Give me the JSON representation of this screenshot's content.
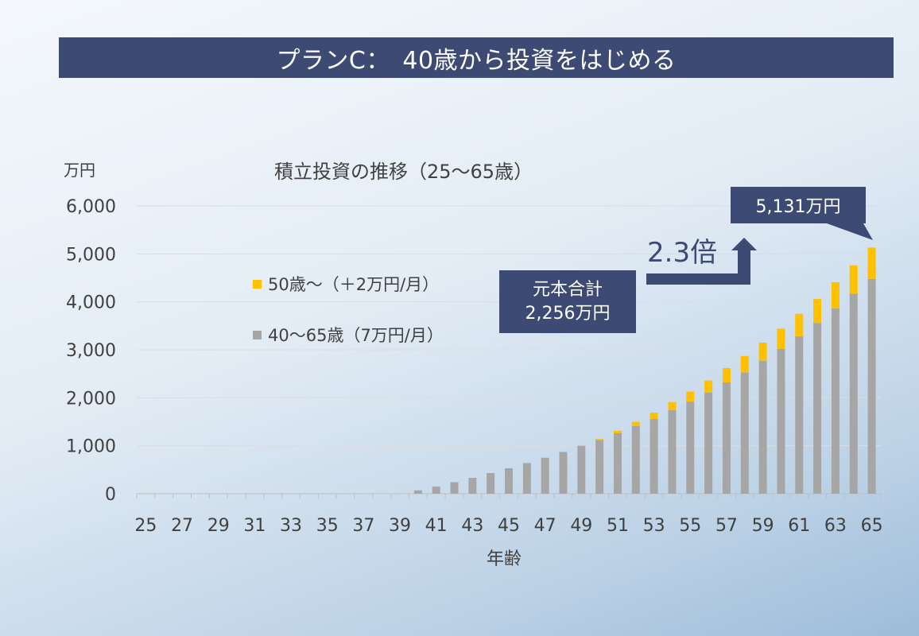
{
  "page": {
    "title": "プランC：　40歳から投資をはじめる"
  },
  "annotations": {
    "principal_line1": "元本合計",
    "principal_line2": "2,256万円",
    "multiplier": "2.3倍",
    "final_value": "5,131万円"
  },
  "colors": {
    "title_bar": "#3d4a74",
    "series_base": "#a6a6a6",
    "series_extra": "#ffc000"
  },
  "chart_data": {
    "type": "bar",
    "stacked": true,
    "title": "積立投資の推移（25〜65歳）",
    "ylabel": "万円",
    "xlabel": "年齢",
    "ylim": [
      0,
      6000
    ],
    "yticks": [
      0,
      1000,
      2000,
      3000,
      4000,
      5000,
      6000
    ],
    "ytick_labels": [
      "0",
      "1,000",
      "2,000",
      "3,000",
      "4,000",
      "5,000",
      "6,000"
    ],
    "categories": [
      25,
      26,
      27,
      28,
      29,
      30,
      31,
      32,
      33,
      34,
      35,
      36,
      37,
      38,
      39,
      40,
      41,
      42,
      43,
      44,
      45,
      46,
      47,
      48,
      49,
      50,
      51,
      52,
      53,
      54,
      55,
      56,
      57,
      58,
      59,
      60,
      61,
      62,
      63,
      64,
      65
    ],
    "xtick_labels": [
      "25",
      "27",
      "29",
      "31",
      "33",
      "35",
      "37",
      "39",
      "41",
      "43",
      "45",
      "47",
      "49",
      "51",
      "53",
      "55",
      "57",
      "59",
      "61",
      "63",
      "65"
    ],
    "grid": true,
    "legend_position": "left",
    "series": [
      {
        "name": "40〜65歳（7万円/月）",
        "color": "#a6a6a6",
        "values": [
          0,
          0,
          0,
          0,
          0,
          0,
          0,
          0,
          0,
          0,
          0,
          0,
          0,
          0,
          0,
          70,
          150,
          240,
          330,
          430,
          530,
          640,
          750,
          870,
          1000,
          1120,
          1260,
          1410,
          1560,
          1740,
          1920,
          2110,
          2320,
          2530,
          2770,
          3020,
          3280,
          3560,
          3860,
          4170,
          4480
        ]
      },
      {
        "name": "50歳〜（＋2万円/月）",
        "color": "#ffc000",
        "values": [
          0,
          0,
          0,
          0,
          0,
          0,
          0,
          0,
          0,
          0,
          0,
          0,
          0,
          0,
          0,
          0,
          0,
          0,
          0,
          0,
          0,
          0,
          0,
          0,
          0,
          20,
          50,
          90,
          130,
          170,
          210,
          250,
          300,
          340,
          380,
          420,
          470,
          500,
          550,
          590,
          651
        ]
      }
    ]
  }
}
